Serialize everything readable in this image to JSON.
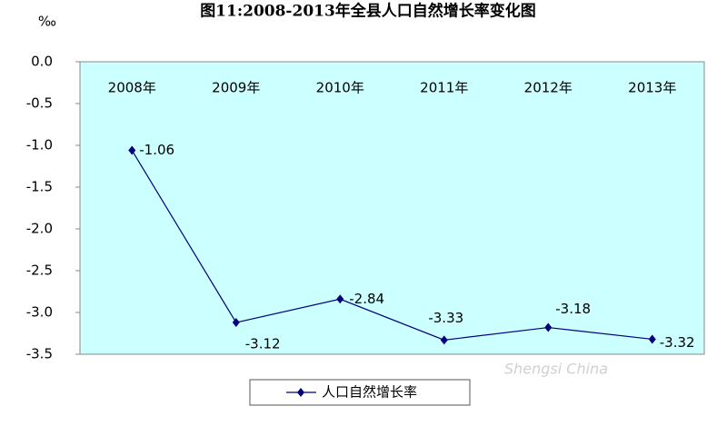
{
  "chart_data": {
    "type": "line",
    "title": "图11:2008-2013年全县人口自然增长率变化图",
    "y_unit": "‰",
    "categories": [
      "2008年",
      "2009年",
      "2010年",
      "2011年",
      "2012年",
      "2013年"
    ],
    "series": [
      {
        "name": "人口自然增长率",
        "color": "#000080",
        "values": [
          -1.06,
          -3.12,
          -2.84,
          -3.33,
          -3.18,
          -3.32
        ]
      }
    ],
    "ylim": [
      -3.5,
      0
    ],
    "yticks": [
      {
        "value": 0,
        "label": "0.0"
      },
      -0.5,
      {
        "value": -1,
        "label": "-1.0"
      },
      -1.5,
      {
        "value": -2,
        "label": "-2.0"
      },
      -2.5,
      {
        "value": -3,
        "label": "-3.0"
      },
      -3.5
    ],
    "legend": "bottom",
    "plot_background": "#ccffff",
    "watermark": "Shengsi China"
  }
}
